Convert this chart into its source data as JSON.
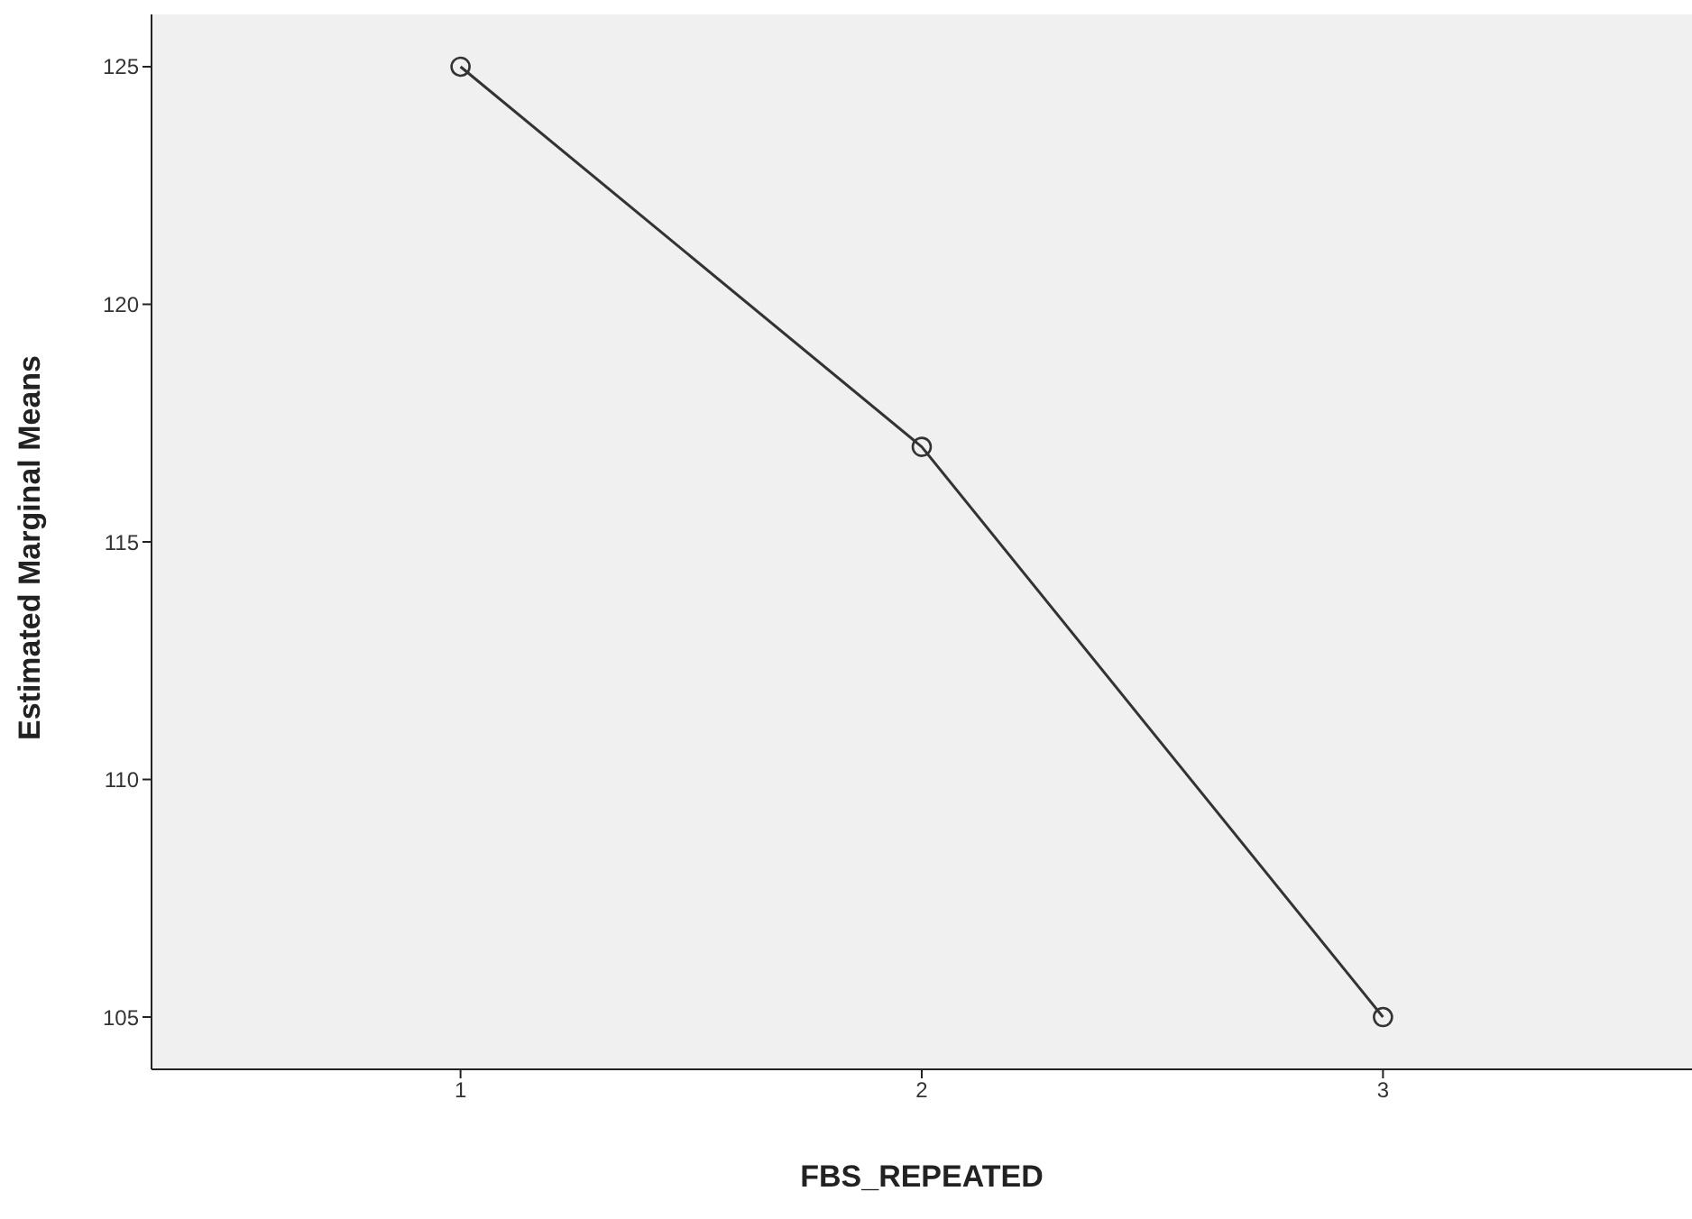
{
  "chart_data": {
    "type": "line",
    "xlabel": "FBS_REPEATED",
    "ylabel": "Estimated Marginal Means",
    "categories": [
      "1",
      "2",
      "3"
    ],
    "series": [
      {
        "color": "#333333",
        "values": [
          125,
          117,
          105
        ]
      }
    ],
    "ylim": [
      103.9,
      126.1
    ],
    "yticks": [
      105,
      110,
      115,
      120,
      125
    ],
    "grid": false,
    "legend": false,
    "marker": "circle",
    "line_style": "solid"
  }
}
